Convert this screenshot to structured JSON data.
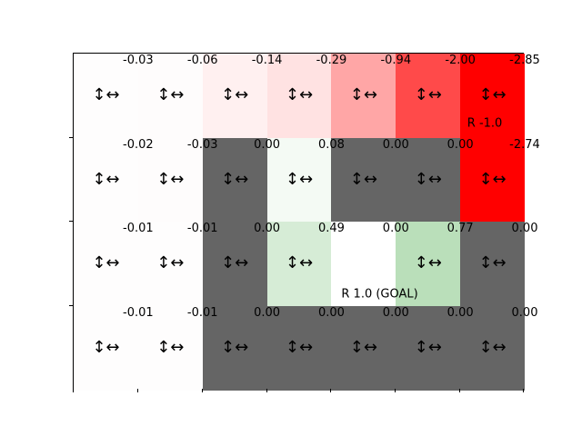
{
  "grid": {
    "rows": 4,
    "cols": 7,
    "arrow_glyph": "↕↔",
    "colors": {
      "blocked": "#656565",
      "value_levels": [
        [
          "#fefdfd",
          "#fefcfc",
          "#fff0f0",
          "#ffe2e2",
          "#ffa6a6",
          "#ff4a4a",
          "#ff0000"
        ],
        [
          "#fefdfd",
          "#fefcfc",
          "#656565",
          "#f4faf4",
          "#656565",
          "#656565",
          "#ff0000"
        ],
        [
          "#fefdfd",
          "#fefdfd",
          "#656565",
          "#d6ecd6",
          "#ffffff",
          "#badfba",
          "#656565"
        ],
        [
          "#fefdfd",
          "#fefdfd",
          "#656565",
          "#656565",
          "#656565",
          "#656565",
          "#656565"
        ]
      ]
    },
    "values": [
      [
        "",
        "-0.03",
        "-0.06",
        "-0.14",
        "-0.29",
        "-0.94",
        "-2.00",
        "-2.85"
      ],
      [
        "",
        "-0.02",
        "-0.03",
        "0.00",
        "0.08",
        "0.00",
        "0.00",
        "-2.74"
      ],
      [
        "",
        "-0.01",
        "-0.01",
        "0.00",
        "0.49",
        "0.00",
        "0.77",
        "0.00"
      ],
      [
        "",
        "-0.01",
        "-0.01",
        "0.00",
        "0.00",
        "0.00",
        "0.00",
        "0.00"
      ]
    ],
    "arrows": [
      [
        true,
        true,
        true,
        true,
        true,
        true,
        true
      ],
      [
        true,
        true,
        true,
        true,
        true,
        true,
        true
      ],
      [
        true,
        true,
        true,
        true,
        false,
        true,
        true
      ],
      [
        true,
        true,
        true,
        true,
        true,
        true,
        true
      ]
    ],
    "rewards": [
      {
        "row": 0,
        "col": 6,
        "text": "R -1.0"
      },
      {
        "row": 2,
        "col": 4,
        "text": "R 1.0 (GOAL)"
      }
    ]
  }
}
